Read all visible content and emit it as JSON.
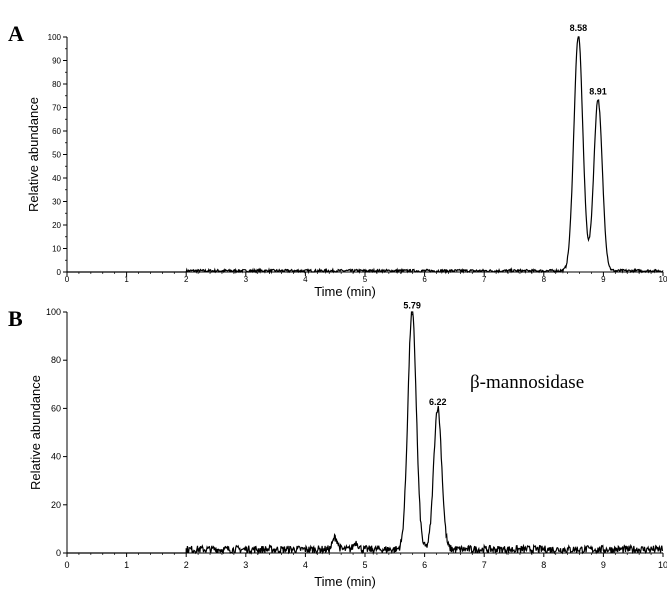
{
  "chart_data": [
    {
      "panel_label": "A",
      "type": "line",
      "xlabel": "Time (min)",
      "ylabel": "Relative  abundance",
      "xlim": [
        0,
        10
      ],
      "ylim": [
        0,
        100
      ],
      "x_ticks": [
        0,
        1,
        2,
        3,
        4,
        5,
        6,
        7,
        8,
        9,
        10
      ],
      "y_ticks": [
        0,
        10,
        20,
        30,
        40,
        50,
        60,
        70,
        80,
        90,
        100
      ],
      "data_start": 2.0,
      "peaks": [
        {
          "label": "8.58",
          "x": 8.58,
          "y": 100
        },
        {
          "label": "8.91",
          "x": 8.91,
          "y": 73
        }
      ],
      "trough": {
        "x": 8.76,
        "y": 18
      },
      "baseline": 0.5,
      "noise": 0.6,
      "annotation": "",
      "grid": false,
      "legend": "none"
    },
    {
      "panel_label": "B",
      "type": "line",
      "xlabel": "Time (min)",
      "ylabel": "Relative  abundance",
      "xlim": [
        0,
        10
      ],
      "ylim": [
        0,
        100
      ],
      "x_ticks": [
        0,
        1,
        2,
        3,
        4,
        5,
        6,
        7,
        8,
        9,
        10
      ],
      "y_ticks": [
        0,
        20,
        40,
        60,
        80,
        100
      ],
      "data_start": 2.0,
      "peaks": [
        {
          "label": "5.79",
          "x": 5.79,
          "y": 99
        },
        {
          "label": "6.22",
          "x": 6.22,
          "y": 59
        }
      ],
      "minor_peaks": [
        {
          "x": 4.5,
          "y": 5
        },
        {
          "x": 4.85,
          "y": 3
        }
      ],
      "trough": {
        "x": 6.02,
        "y": 6
      },
      "baseline": 1.5,
      "noise": 1.6,
      "annotation": "β-mannosidase",
      "grid": false,
      "legend": "none"
    }
  ]
}
